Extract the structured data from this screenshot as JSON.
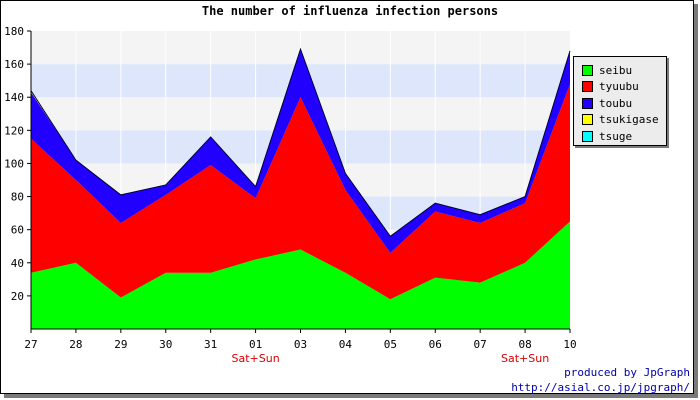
{
  "chart_data": {
    "type": "area",
    "stacked": true,
    "title": "The number of influenza infection persons",
    "xlabel": "",
    "ylabel": "",
    "categories": [
      "27",
      "28",
      "29",
      "30",
      "31",
      "01",
      "03",
      "04",
      "05",
      "06",
      "07",
      "08",
      "10"
    ],
    "category_notes": [
      {
        "category": "01",
        "text": "Sat+Sun"
      },
      {
        "category": "08",
        "text": "Sat+Sun"
      }
    ],
    "ylim": [
      0,
      180
    ],
    "yticks": [
      20,
      40,
      60,
      80,
      100,
      120,
      140,
      160,
      180
    ],
    "grid": "horizontal bands",
    "legend_position": "right",
    "series": [
      {
        "name": "seibu",
        "color": "#00ff00",
        "values": [
          34,
          40,
          19,
          34,
          34,
          42,
          48,
          34,
          18,
          31,
          28,
          40,
          65
        ]
      },
      {
        "name": "tyuubu",
        "color": "#ff0000",
        "values": [
          81,
          50,
          45,
          47,
          65,
          37,
          92,
          50,
          28,
          40,
          36,
          36,
          83
        ]
      },
      {
        "name": "toubu",
        "color": "#2200ff",
        "values": [
          28,
          12,
          17,
          6,
          17,
          7,
          29,
          10,
          10,
          5,
          5,
          4,
          20
        ]
      },
      {
        "name": "tsukigase",
        "color": "#ffff00",
        "values": [
          1,
          0,
          0,
          0,
          0,
          0,
          0,
          0,
          0,
          0,
          0,
          0,
          0
        ]
      },
      {
        "name": "tsuge",
        "color": "#00ffff",
        "values": [
          0,
          0,
          0,
          0,
          0,
          0,
          0,
          0,
          0,
          0,
          0,
          0,
          0
        ]
      }
    ]
  },
  "credit": {
    "line1": "produced by JpGraph",
    "line2": "http://asial.co.jp/jpgraph/"
  }
}
